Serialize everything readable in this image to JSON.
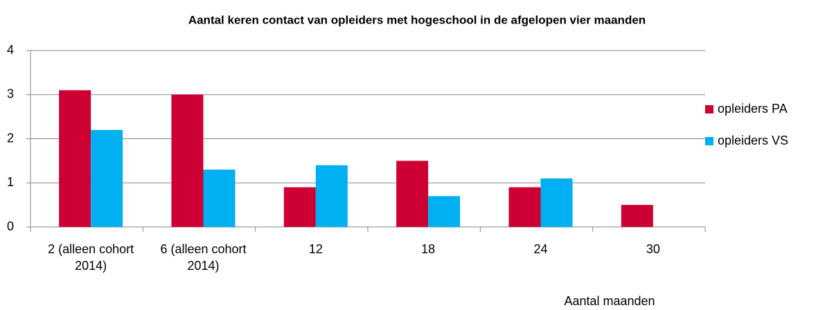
{
  "chart_data": {
    "type": "bar",
    "title": "Aantal keren contact van opleiders met hogeschool in de afgelopen vier maanden",
    "x_label": "Aantal maanden",
    "categories": [
      "2 (alleen cohort 2014)",
      "6 (alleen cohort 2014)",
      "12",
      "18",
      "24",
      "30"
    ],
    "series": [
      {
        "name": "opleiders PA",
        "color": "#cc0033",
        "values": [
          3.1,
          3.0,
          0.9,
          1.5,
          0.9,
          0.5
        ]
      },
      {
        "name": "opleiders VS",
        "color": "#00b0f0",
        "values": [
          2.2,
          1.3,
          1.4,
          0.7,
          1.1,
          null
        ]
      }
    ],
    "ylim": [
      0,
      4
    ],
    "yticks": [
      0,
      1,
      2,
      3,
      4
    ],
    "grid": true,
    "legend": "right"
  }
}
